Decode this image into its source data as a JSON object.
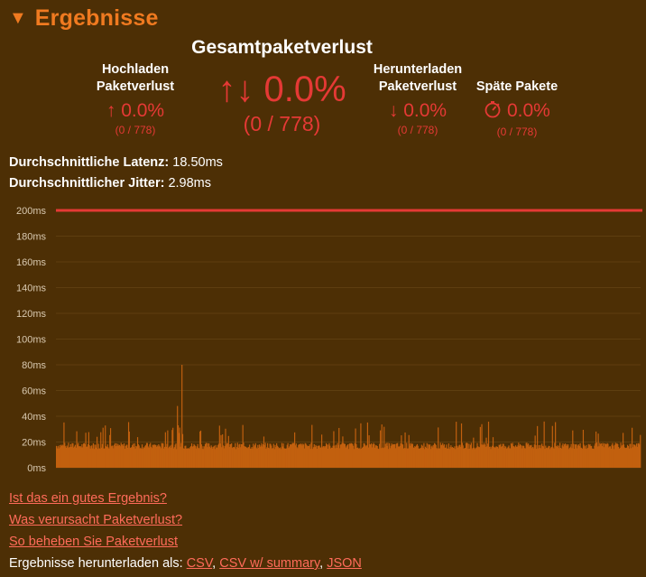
{
  "header": {
    "title": "Ergebnisse"
  },
  "stats": {
    "upload": {
      "label_line1": "Hochladen",
      "label_line2": "Paketverlust",
      "arrow": "↑",
      "value": "0.0%",
      "count": "(0 / 778)"
    },
    "total": {
      "label": "Gesamtpaketverlust",
      "arrows": "↑↓",
      "value": "0.0%",
      "count": "(0 / 778)"
    },
    "download": {
      "label_line1": "Herunterladen",
      "label_line2": "Paketverlust",
      "arrow": "↓",
      "value": "0.0%",
      "count": "(0 / 778)"
    },
    "late": {
      "label": "Späte Pakete",
      "icon": "stopwatch-icon",
      "value": "0.0%",
      "count": "(0 / 778)"
    }
  },
  "metrics": {
    "latency": {
      "label": "Durchschnittliche Latenz:",
      "value": "18.50ms"
    },
    "jitter": {
      "label": "Durchschnittlicher Jitter:",
      "value": "2.98ms"
    }
  },
  "chart_data": {
    "type": "bar",
    "yticks": [
      "200ms",
      "180ms",
      "160ms",
      "140ms",
      "120ms",
      "100ms",
      "80ms",
      "60ms",
      "40ms",
      "20ms",
      "0ms"
    ],
    "ylim": [
      0,
      200
    ],
    "threshold": 200,
    "sample_count": 778,
    "typical_value": 17,
    "spikes": [
      {
        "index": 167,
        "value": 80
      },
      {
        "index": 161,
        "value": 48
      },
      {
        "index": 162,
        "value": 33
      }
    ],
    "colors": {
      "bars": "#c2600f",
      "threshold": "#e53935",
      "grid": "#5e3e10",
      "text": "#d9c9b0"
    }
  },
  "links": [
    "Ist das ein gutes Ergebnis?",
    "Was verursacht Paketverlust?",
    "So beheben Sie Paketverlust"
  ],
  "download": {
    "label": "Ergebnisse herunterladen als:",
    "csv": "CSV",
    "csv_summary": "CSV w/ summary",
    "json": "JSON",
    "sep": ","
  }
}
